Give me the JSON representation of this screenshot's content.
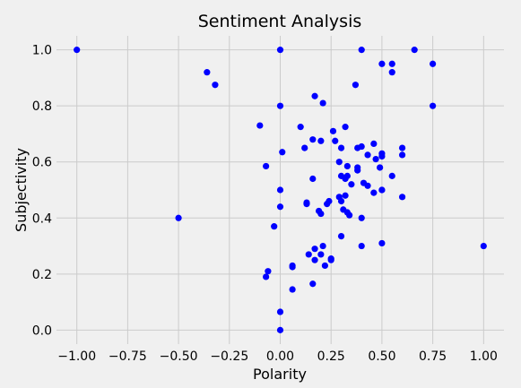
{
  "chart_data": {
    "type": "scatter",
    "title": "Sentiment Analysis",
    "xlabel": "Polarity",
    "ylabel": "Subjectivity",
    "xlim": [
      -1.1,
      1.1
    ],
    "ylim": [
      -0.05,
      1.05
    ],
    "xticks": [
      -1.0,
      -0.75,
      -0.5,
      -0.25,
      0.0,
      0.25,
      0.5,
      0.75,
      1.0
    ],
    "xtick_labels": [
      "−1.00",
      "−0.75",
      "−0.50",
      "−0.25",
      "0.00",
      "0.25",
      "0.50",
      "0.75",
      "1.00"
    ],
    "yticks": [
      0.0,
      0.2,
      0.4,
      0.6,
      0.8,
      1.0
    ],
    "ytick_labels": [
      "0.0",
      "0.2",
      "0.4",
      "0.6",
      "0.8",
      "1.0"
    ],
    "grid": true,
    "marker_color": "#0000ff",
    "background_color": "#f0f0f0",
    "grid_color": "#cbcbcb",
    "points": [
      [
        -1.0,
        1.0
      ],
      [
        -0.5,
        0.4
      ],
      [
        -0.36,
        0.92
      ],
      [
        -0.32,
        0.875
      ],
      [
        -0.1,
        0.73
      ],
      [
        -0.07,
        0.585
      ],
      [
        -0.07,
        0.19
      ],
      [
        -0.06,
        0.21
      ],
      [
        -0.03,
        0.37
      ],
      [
        0.0,
        1.0
      ],
      [
        0.0,
        0.8
      ],
      [
        0.0,
        0.5
      ],
      [
        0.0,
        0.44
      ],
      [
        0.0,
        0.065
      ],
      [
        0.0,
        0.0
      ],
      [
        0.01,
        0.635
      ],
      [
        0.06,
        0.23
      ],
      [
        0.06,
        0.225
      ],
      [
        0.06,
        0.145
      ],
      [
        0.1,
        0.725
      ],
      [
        0.12,
        0.65
      ],
      [
        0.13,
        0.45
      ],
      [
        0.13,
        0.455
      ],
      [
        0.14,
        0.27
      ],
      [
        0.16,
        0.68
      ],
      [
        0.16,
        0.54
      ],
      [
        0.16,
        0.165
      ],
      [
        0.17,
        0.835
      ],
      [
        0.17,
        0.25
      ],
      [
        0.17,
        0.29
      ],
      [
        0.19,
        0.425
      ],
      [
        0.2,
        0.675
      ],
      [
        0.2,
        0.415
      ],
      [
        0.2,
        0.27
      ],
      [
        0.21,
        0.81
      ],
      [
        0.21,
        0.3
      ],
      [
        0.22,
        0.23
      ],
      [
        0.23,
        0.45
      ],
      [
        0.24,
        0.46
      ],
      [
        0.25,
        0.25
      ],
      [
        0.25,
        0.255
      ],
      [
        0.26,
        0.71
      ],
      [
        0.27,
        0.675
      ],
      [
        0.29,
        0.6
      ],
      [
        0.29,
        0.475
      ],
      [
        0.3,
        0.65
      ],
      [
        0.3,
        0.46
      ],
      [
        0.3,
        0.55
      ],
      [
        0.3,
        0.335
      ],
      [
        0.31,
        0.43
      ],
      [
        0.32,
        0.725
      ],
      [
        0.32,
        0.48
      ],
      [
        0.32,
        0.54
      ],
      [
        0.33,
        0.585
      ],
      [
        0.33,
        0.55
      ],
      [
        0.33,
        0.42
      ],
      [
        0.34,
        0.41
      ],
      [
        0.35,
        0.52
      ],
      [
        0.37,
        0.875
      ],
      [
        0.38,
        0.65
      ],
      [
        0.38,
        0.58
      ],
      [
        0.38,
        0.57
      ],
      [
        0.4,
        1.0
      ],
      [
        0.4,
        0.655
      ],
      [
        0.4,
        0.4
      ],
      [
        0.4,
        0.3
      ],
      [
        0.41,
        0.525
      ],
      [
        0.43,
        0.625
      ],
      [
        0.43,
        0.515
      ],
      [
        0.46,
        0.665
      ],
      [
        0.46,
        0.49
      ],
      [
        0.47,
        0.61
      ],
      [
        0.49,
        0.58
      ],
      [
        0.5,
        0.95
      ],
      [
        0.5,
        0.62
      ],
      [
        0.5,
        0.63
      ],
      [
        0.5,
        0.5
      ],
      [
        0.5,
        0.5
      ],
      [
        0.5,
        0.31
      ],
      [
        0.55,
        0.95
      ],
      [
        0.55,
        0.92
      ],
      [
        0.55,
        0.55
      ],
      [
        0.6,
        0.65
      ],
      [
        0.6,
        0.625
      ],
      [
        0.6,
        0.475
      ],
      [
        0.66,
        1.0
      ],
      [
        0.75,
        0.95
      ],
      [
        0.75,
        0.8
      ],
      [
        1.0,
        0.3
      ]
    ]
  }
}
